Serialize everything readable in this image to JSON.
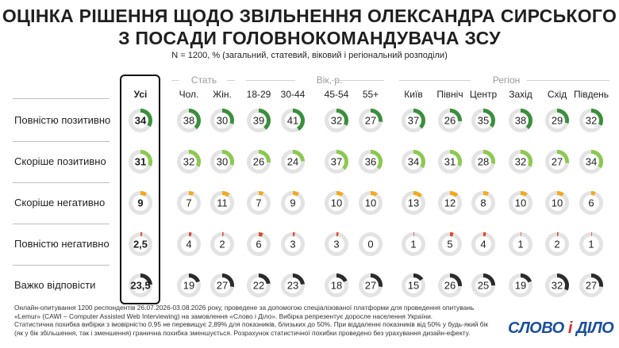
{
  "title_line1": "ОЦІНКА РІШЕННЯ ЩОДО ЗВІЛЬНЕННЯ ОЛЕКСАНДРА СИРСЬКОГО",
  "title_line2": "З ПОСАДИ ГОЛОВНОКОМАНДУВАЧА ЗСУ",
  "subtitle": "N = 1200, % (загальний, статевий, віковий і регіональний розподіли)",
  "groups": {
    "sex": "Стать",
    "age": "Вік, р.",
    "region": "Регіон"
  },
  "footer": [
    "Онлайн-опитування 1200 респондентів 26.07.2026-03.08.2026 року, проведене за допомогою спеціалізованої платформи для проведення опитувань",
    "«Lemur» (CAWI – Computer Assisted Web Interviewing) на замовлення «Слово і Діло». Вибірка репрезентує доросле населення України.",
    "Статистична похибка вибірки з імовірністю 0,95 не перевищує 2,89% для показників, близьких до 50%. При віддаленні показників від 50% у будь-який бік",
    "(як у бік збільшення, так і зменшення) гранична похибка зменшується. Розрахунок статистичної похибки проведено без урахування дизайн-ефекту."
  ],
  "logo": {
    "word1": "СЛОВО",
    "amp": "і",
    "word2": "ДІЛО"
  },
  "colors": {
    "fully_positive": "#3a8f3c",
    "rather_positive": "#8cc94f",
    "rather_negative": "#f2a91e",
    "fully_negative": "#d84b2a",
    "hard_to_say": "#2b2b2b",
    "track": "#e3e3e3"
  },
  "chart_data": {
    "type": "donut-grid",
    "columns": [
      "Усі",
      "Чол.",
      "Жін.",
      "18-29",
      "30-44",
      "45-54",
      "55+",
      "Київ",
      "Північ",
      "Центр",
      "Захід",
      "Схід",
      "Південь"
    ],
    "column_groups": [
      {
        "name": "Стать",
        "columns": [
          "Чол.",
          "Жін."
        ]
      },
      {
        "name": "Вік, р.",
        "columns": [
          "18-29",
          "30-44",
          "45-54",
          "55+"
        ]
      },
      {
        "name": "Регіон",
        "columns": [
          "Київ",
          "Північ",
          "Центр",
          "Захід",
          "Схід",
          "Південь"
        ]
      }
    ],
    "series": [
      {
        "name": "Повністю позитивно",
        "labels": [
          "34",
          "38",
          "30",
          "39",
          "41",
          "32",
          "27",
          "37",
          "26",
          "35",
          "38",
          "29",
          "32"
        ],
        "values": [
          34,
          38,
          30,
          39,
          41,
          32,
          27,
          37,
          26,
          35,
          38,
          29,
          32
        ]
      },
      {
        "name": "Скоріше позитивно",
        "labels": [
          "31",
          "32",
          "30",
          "26",
          "24",
          "37",
          "36",
          "34",
          "31",
          "28",
          "32",
          "27",
          "34"
        ],
        "values": [
          31,
          32,
          30,
          26,
          24,
          37,
          36,
          34,
          31,
          28,
          32,
          27,
          34
        ]
      },
      {
        "name": "Скоріше негативно",
        "labels": [
          "9",
          "7",
          "11",
          "7",
          "9",
          "10",
          "10",
          "13",
          "12",
          "8",
          "10",
          "10",
          "6"
        ],
        "values": [
          9,
          7,
          11,
          7,
          9,
          10,
          10,
          13,
          12,
          8,
          10,
          10,
          6
        ]
      },
      {
        "name": "Повністю негативно",
        "labels": [
          "2,5",
          "4",
          "2",
          "6",
          "3",
          "3",
          "0",
          "1",
          "5",
          "4",
          "1",
          "2",
          "1"
        ],
        "values": [
          2.5,
          4,
          2,
          6,
          3,
          3,
          0,
          1,
          5,
          4,
          1,
          2,
          1
        ]
      },
      {
        "name": "Важко відповісти",
        "labels": [
          "23,5",
          "19",
          "27",
          "22",
          "23",
          "18",
          "27",
          "15",
          "26",
          "25",
          "19",
          "32",
          "27"
        ],
        "values": [
          23.5,
          19,
          27,
          22,
          23,
          18,
          27,
          15,
          26,
          25,
          19,
          32,
          27
        ]
      }
    ]
  }
}
